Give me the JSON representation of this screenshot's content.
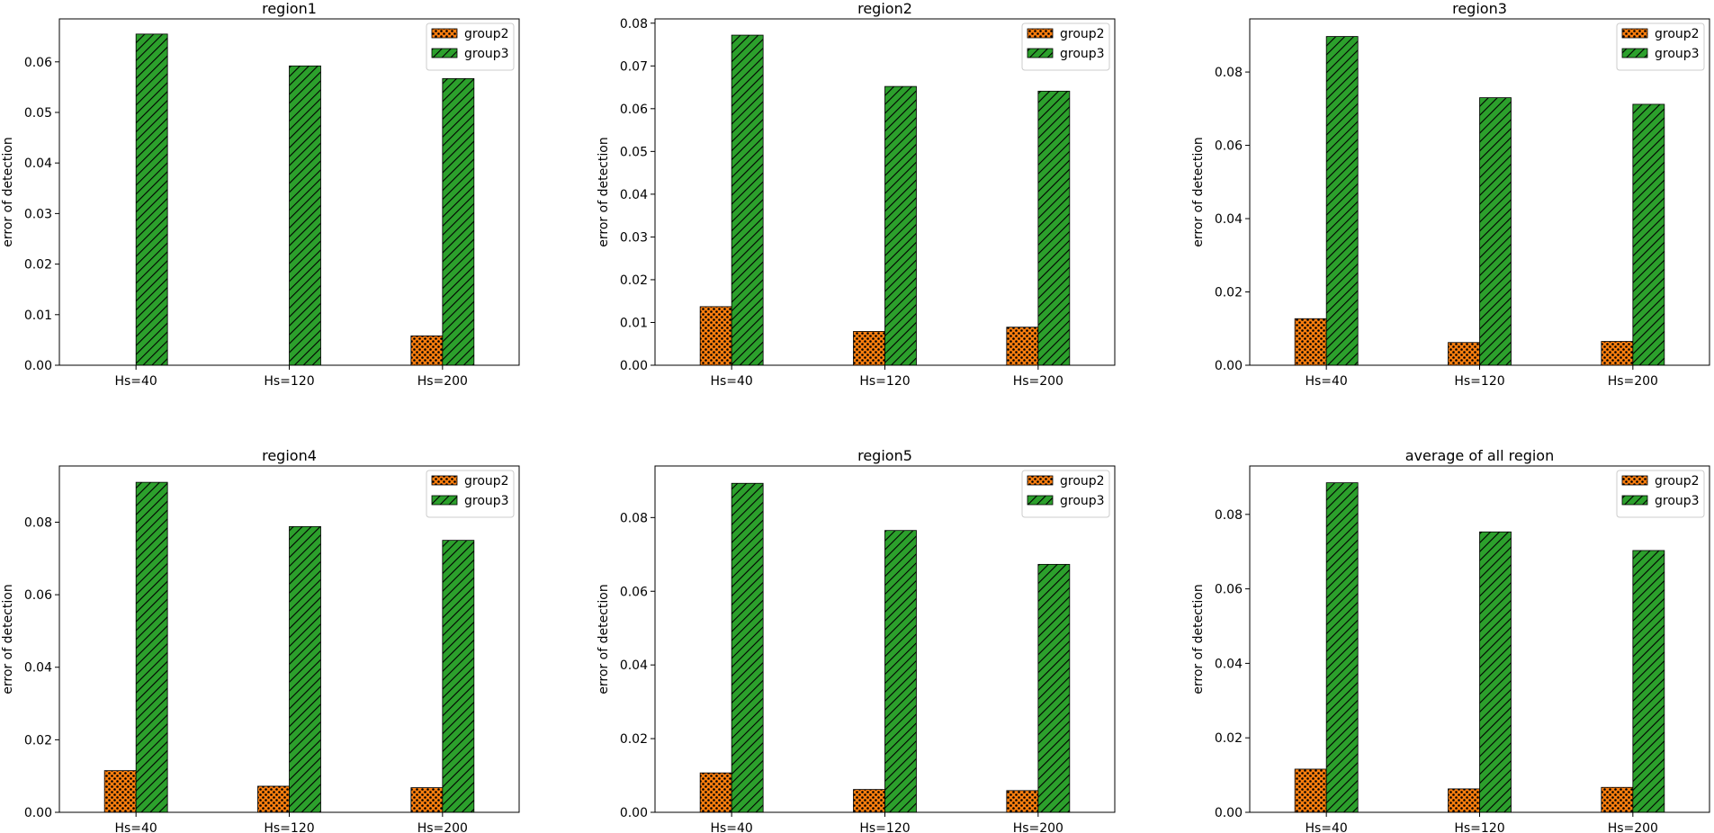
{
  "colors": {
    "group2": "#ff7f0e",
    "group3": "#2ca02c",
    "edge": "#000000"
  },
  "chart_data": [
    {
      "type": "bar",
      "title": "region1",
      "ylabel": "error of detection",
      "xlabel": "",
      "categories": [
        "Hs=40",
        "Hs=120",
        "Hs=200"
      ],
      "ylim": [
        0,
        0.0685
      ],
      "yticks": [
        "0.00",
        "0.01",
        "0.02",
        "0.03",
        "0.04",
        "0.05",
        "0.06"
      ],
      "legend": "top-right",
      "series": [
        {
          "name": "group2",
          "values": [
            0.0,
            0.0,
            0.0058
          ]
        },
        {
          "name": "group3",
          "values": [
            0.0655,
            0.0592,
            0.0567
          ]
        }
      ]
    },
    {
      "type": "bar",
      "title": "region2",
      "ylabel": "error of detection",
      "xlabel": "",
      "categories": [
        "Hs=40",
        "Hs=120",
        "Hs=200"
      ],
      "ylim": [
        0,
        0.081
      ],
      "yticks": [
        "0.00",
        "0.01",
        "0.02",
        "0.03",
        "0.04",
        "0.05",
        "0.06",
        "0.07",
        "0.08"
      ],
      "legend": "top-right",
      "series": [
        {
          "name": "group2",
          "values": [
            0.0137,
            0.0079,
            0.0089
          ]
        },
        {
          "name": "group3",
          "values": [
            0.0772,
            0.0652,
            0.0641
          ]
        }
      ]
    },
    {
      "type": "bar",
      "title": "region3",
      "ylabel": "error of detection",
      "xlabel": "",
      "categories": [
        "Hs=40",
        "Hs=120",
        "Hs=200"
      ],
      "ylim": [
        0,
        0.0945
      ],
      "yticks": [
        "0.00",
        "0.02",
        "0.04",
        "0.06",
        "0.08"
      ],
      "legend": "top-right",
      "series": [
        {
          "name": "group2",
          "values": [
            0.0127,
            0.0062,
            0.0065
          ]
        },
        {
          "name": "group3",
          "values": [
            0.0897,
            0.073,
            0.0712
          ]
        }
      ]
    },
    {
      "type": "bar",
      "title": "region4",
      "ylabel": "error of detection",
      "xlabel": "",
      "categories": [
        "Hs=40",
        "Hs=120",
        "Hs=200"
      ],
      "ylim": [
        0,
        0.0955
      ],
      "yticks": [
        "0.00",
        "0.02",
        "0.04",
        "0.06",
        "0.08"
      ],
      "legend": "top-right",
      "series": [
        {
          "name": "group2",
          "values": [
            0.0115,
            0.0072,
            0.0068
          ]
        },
        {
          "name": "group3",
          "values": [
            0.091,
            0.0788,
            0.075
          ]
        }
      ]
    },
    {
      "type": "bar",
      "title": "region5",
      "ylabel": "error of detection",
      "xlabel": "",
      "categories": [
        "Hs=40",
        "Hs=120",
        "Hs=200"
      ],
      "ylim": [
        0,
        0.094
      ],
      "yticks": [
        "0.00",
        "0.02",
        "0.04",
        "0.06",
        "0.08"
      ],
      "legend": "top-right",
      "series": [
        {
          "name": "group2",
          "values": [
            0.0107,
            0.0062,
            0.0059
          ]
        },
        {
          "name": "group3",
          "values": [
            0.0893,
            0.0765,
            0.0673
          ]
        }
      ]
    },
    {
      "type": "bar",
      "title": "average of all region",
      "ylabel": "error of detection",
      "xlabel": "",
      "categories": [
        "Hs=40",
        "Hs=120",
        "Hs=200"
      ],
      "ylim": [
        0,
        0.093
      ],
      "yticks": [
        "0.00",
        "0.02",
        "0.04",
        "0.06",
        "0.08"
      ],
      "legend": "top-right",
      "series": [
        {
          "name": "group2",
          "values": [
            0.0116,
            0.0063,
            0.0067
          ]
        },
        {
          "name": "group3",
          "values": [
            0.0885,
            0.0753,
            0.0703
          ]
        }
      ]
    }
  ]
}
